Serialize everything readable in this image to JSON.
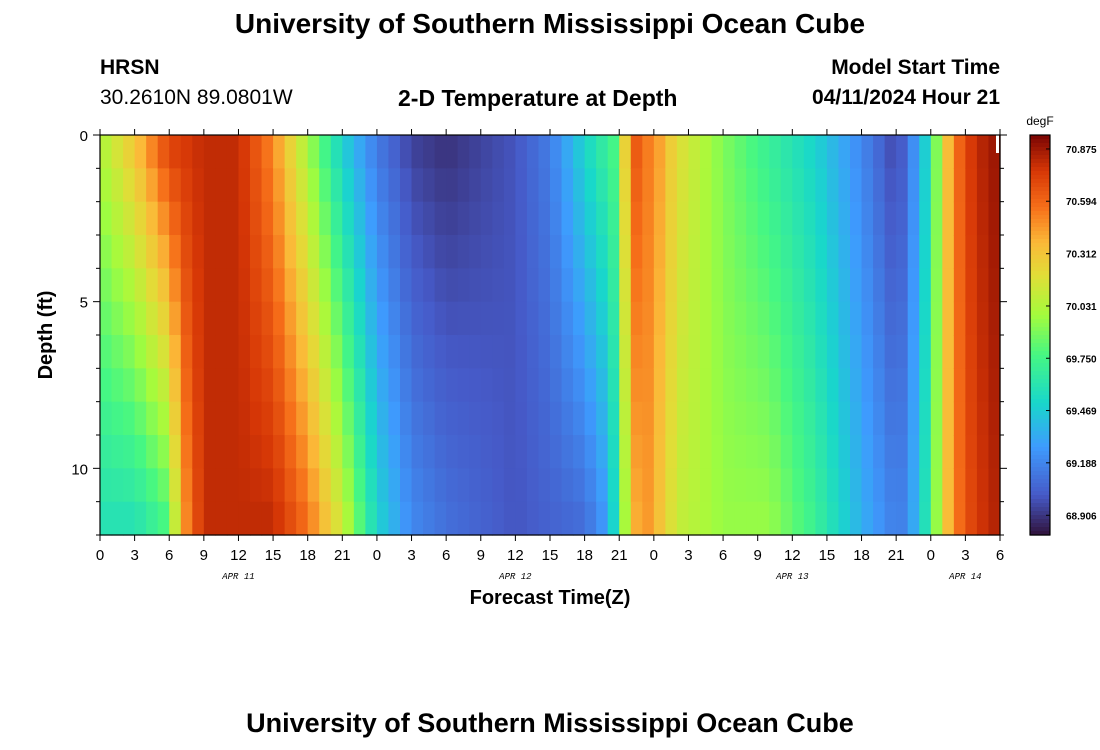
{
  "page": {
    "title": "University of Southern Mississippi Ocean Cube",
    "footer_title": "University of Southern Mississippi Ocean Cube",
    "station": "HRSN",
    "coords": "30.2610N  89.0801W",
    "chart_title": "2-D Temperature at Depth",
    "model_start_label": "Model Start Time",
    "model_start_value": "04/11/2024 Hour 21"
  },
  "chart_data": {
    "type": "heatmap",
    "title": "2-D Temperature at Depth",
    "xlabel": "Forecast Time(Z)",
    "ylabel": "Depth (ft)",
    "x_unit": "hours since 04/11 00Z",
    "xlim": [
      0,
      78
    ],
    "ylim": [
      0,
      12
    ],
    "x_tick_values": [
      0,
      3,
      6,
      9,
      12,
      15,
      18,
      21,
      24,
      27,
      30,
      33,
      36,
      39,
      42,
      45,
      48,
      51,
      54,
      57,
      60,
      63,
      66,
      69,
      72,
      75,
      78
    ],
    "x_tick_labels": [
      "0",
      "3",
      "6",
      "9",
      "12",
      "15",
      "18",
      "21",
      "0",
      "3",
      "6",
      "9",
      "12",
      "15",
      "18",
      "21",
      "0",
      "3",
      "6",
      "9",
      "12",
      "15",
      "18",
      "21",
      "0",
      "3",
      "6"
    ],
    "date_labels": [
      {
        "text": "APR 11",
        "x": 12
      },
      {
        "text": "APR 12",
        "x": 36
      },
      {
        "text": "APR 13",
        "x": 60
      },
      {
        "text": "APR 14",
        "x": 75
      }
    ],
    "y_tick_values": [
      0,
      5,
      10
    ],
    "y_tick_labels": [
      "0",
      "5",
      "10"
    ],
    "colorbar": {
      "unit": "degF",
      "min": 68.8,
      "max": 70.95,
      "tick_values": [
        68.906,
        69.188,
        69.469,
        69.75,
        70.031,
        70.312,
        70.594,
        70.875
      ],
      "tick_labels": [
        "68.906",
        "69.188",
        "69.469",
        "69.750",
        "70.031",
        "70.312",
        "70.594",
        "70.875"
      ]
    },
    "grid_step_hours": 1,
    "depth_levels": 12,
    "surface_series_keyframes": {
      "hours": [
        0,
        3,
        6,
        9,
        12,
        15,
        18,
        21,
        24,
        27,
        30,
        33,
        36,
        39,
        42,
        45,
        46,
        47,
        48,
        50,
        54,
        58,
        62,
        66,
        69,
        70,
        72,
        73,
        74,
        75,
        76,
        77,
        78
      ],
      "values": [
        70.0,
        70.3,
        70.7,
        70.8,
        70.8,
        70.5,
        70.0,
        69.5,
        69.15,
        68.95,
        68.9,
        68.95,
        69.0,
        69.15,
        69.5,
        69.8,
        70.7,
        70.55,
        70.5,
        70.2,
        69.9,
        69.7,
        69.5,
        69.2,
        68.95,
        69.1,
        69.6,
        70.2,
        70.5,
        70.7,
        70.8,
        70.85,
        70.9
      ]
    },
    "bottom_series_keyframes": {
      "hours": [
        0,
        3,
        6,
        7,
        9,
        12,
        15,
        18,
        21,
        24,
        27,
        30,
        33,
        36,
        39,
        42,
        44,
        45,
        46,
        47,
        48,
        50,
        54,
        58,
        62,
        66,
        69,
        70,
        72,
        73,
        74,
        75,
        76,
        77,
        78
      ],
      "values": [
        69.6,
        69.6,
        69.8,
        70.4,
        70.8,
        70.8,
        70.8,
        70.55,
        70.1,
        69.5,
        69.2,
        69.1,
        69.05,
        69.0,
        69.05,
        69.1,
        69.3,
        69.7,
        70.3,
        70.5,
        70.4,
        70.1,
        69.95,
        69.95,
        69.7,
        69.35,
        69.15,
        69.2,
        69.7,
        70.2,
        70.5,
        70.65,
        70.75,
        70.8,
        70.85
      ]
    }
  }
}
